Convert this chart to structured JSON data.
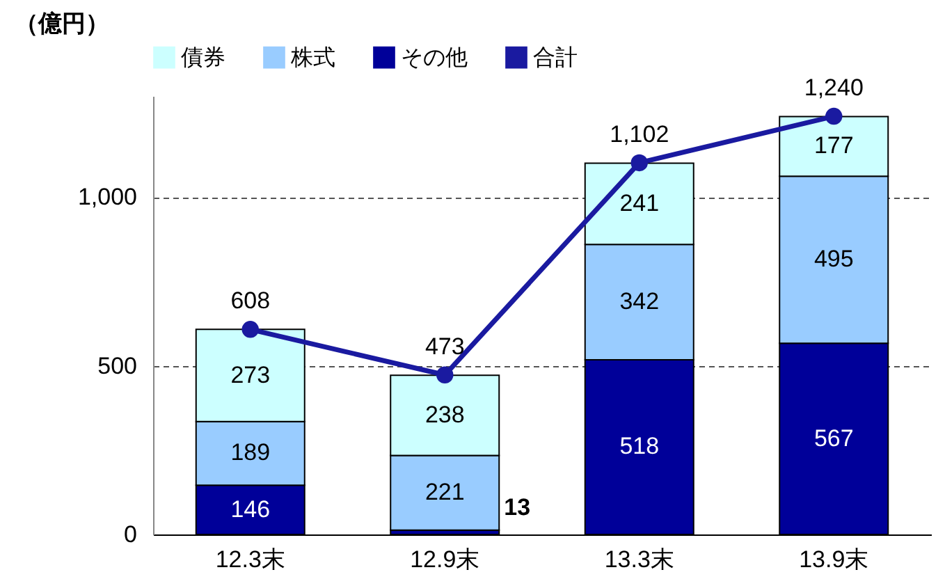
{
  "chart_data": {
    "type": "bar",
    "stacked": true,
    "ylabel": "（億円）",
    "categories": [
      "12.3末",
      "12.9末",
      "13.3末",
      "13.9末"
    ],
    "series": [
      {
        "name": "その他",
        "color": "#000099",
        "values": [
          146,
          13,
          518,
          567
        ]
      },
      {
        "name": "株式",
        "color": "#99ccff",
        "values": [
          189,
          221,
          342,
          495
        ]
      },
      {
        "name": "債券",
        "color": "#ccffff",
        "values": [
          273,
          238,
          241,
          177
        ]
      },
      {
        "name": "合計",
        "type": "line",
        "color": "#1a1aa0",
        "values": [
          608,
          473,
          1102,
          1240
        ],
        "value_labels": [
          "608",
          "473",
          "1,102",
          "1,240"
        ]
      }
    ],
    "ylim": [
      0,
      1300
    ],
    "yticks": [
      0,
      {
        "value": 500,
        "label": "500"
      },
      {
        "value": 1000,
        "label": "1,000"
      }
    ],
    "grid": "y",
    "legend": "top",
    "marker": "circle",
    "data_labels": true
  }
}
